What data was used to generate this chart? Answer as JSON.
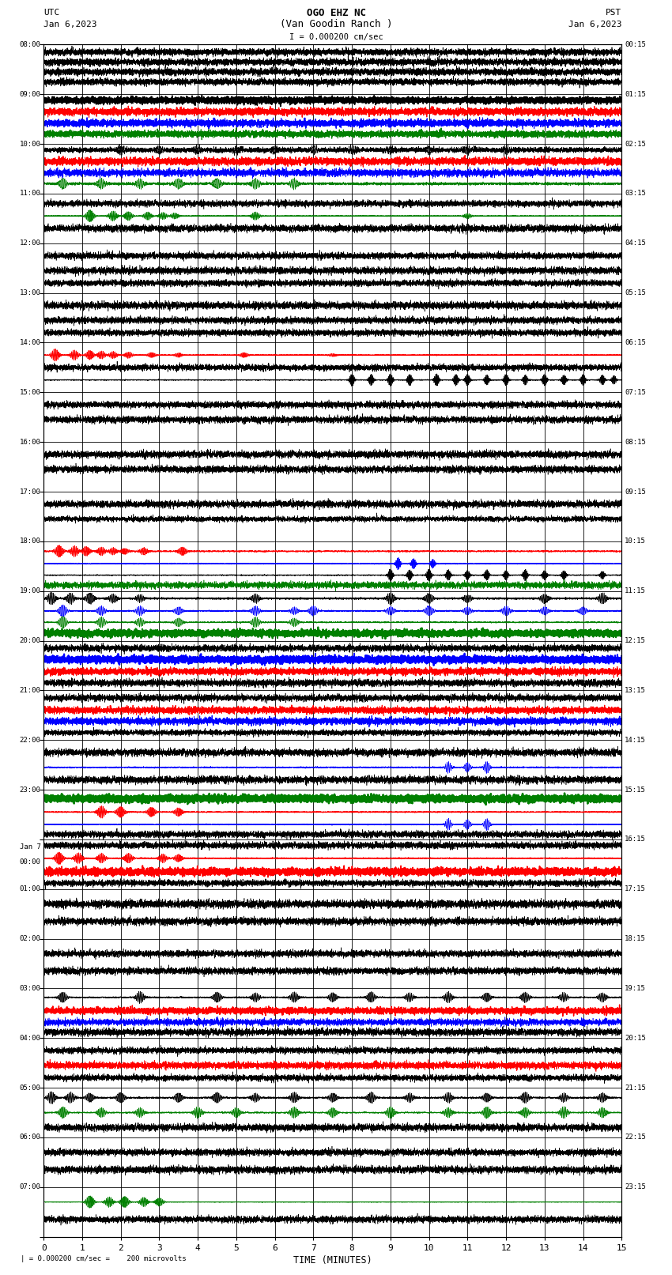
{
  "title_line1": "OGO EHZ NC",
  "title_line2": "(Van Goodin Ranch )",
  "title_line3": "I = 0.000200 cm/sec",
  "label_utc": "UTC",
  "label_pst": "PST",
  "date_left": "Jan 6,2023",
  "date_right": "Jan 6,2023",
  "footer": "| = 0.000200 cm/sec =    200 microvolts",
  "xlabel": "TIME (MINUTES)",
  "utc_times": [
    "08:00",
    "09:00",
    "10:00",
    "11:00",
    "12:00",
    "13:00",
    "14:00",
    "15:00",
    "16:00",
    "17:00",
    "18:00",
    "19:00",
    "20:00",
    "21:00",
    "22:00",
    "23:00",
    "Jan 7\n00:00",
    "01:00",
    "02:00",
    "03:00",
    "04:00",
    "05:00",
    "06:00",
    "07:00"
  ],
  "pst_times": [
    "00:15",
    "01:15",
    "02:15",
    "03:15",
    "04:15",
    "05:15",
    "06:15",
    "07:15",
    "08:15",
    "09:15",
    "10:15",
    "11:15",
    "12:15",
    "13:15",
    "14:15",
    "15:15",
    "16:15",
    "17:15",
    "18:15",
    "19:15",
    "20:15",
    "21:15",
    "22:15",
    "23:15"
  ],
  "n_rows": 24,
  "n_minutes": 15,
  "bg_color": "#ffffff",
  "sub_rows_per_row": 4
}
